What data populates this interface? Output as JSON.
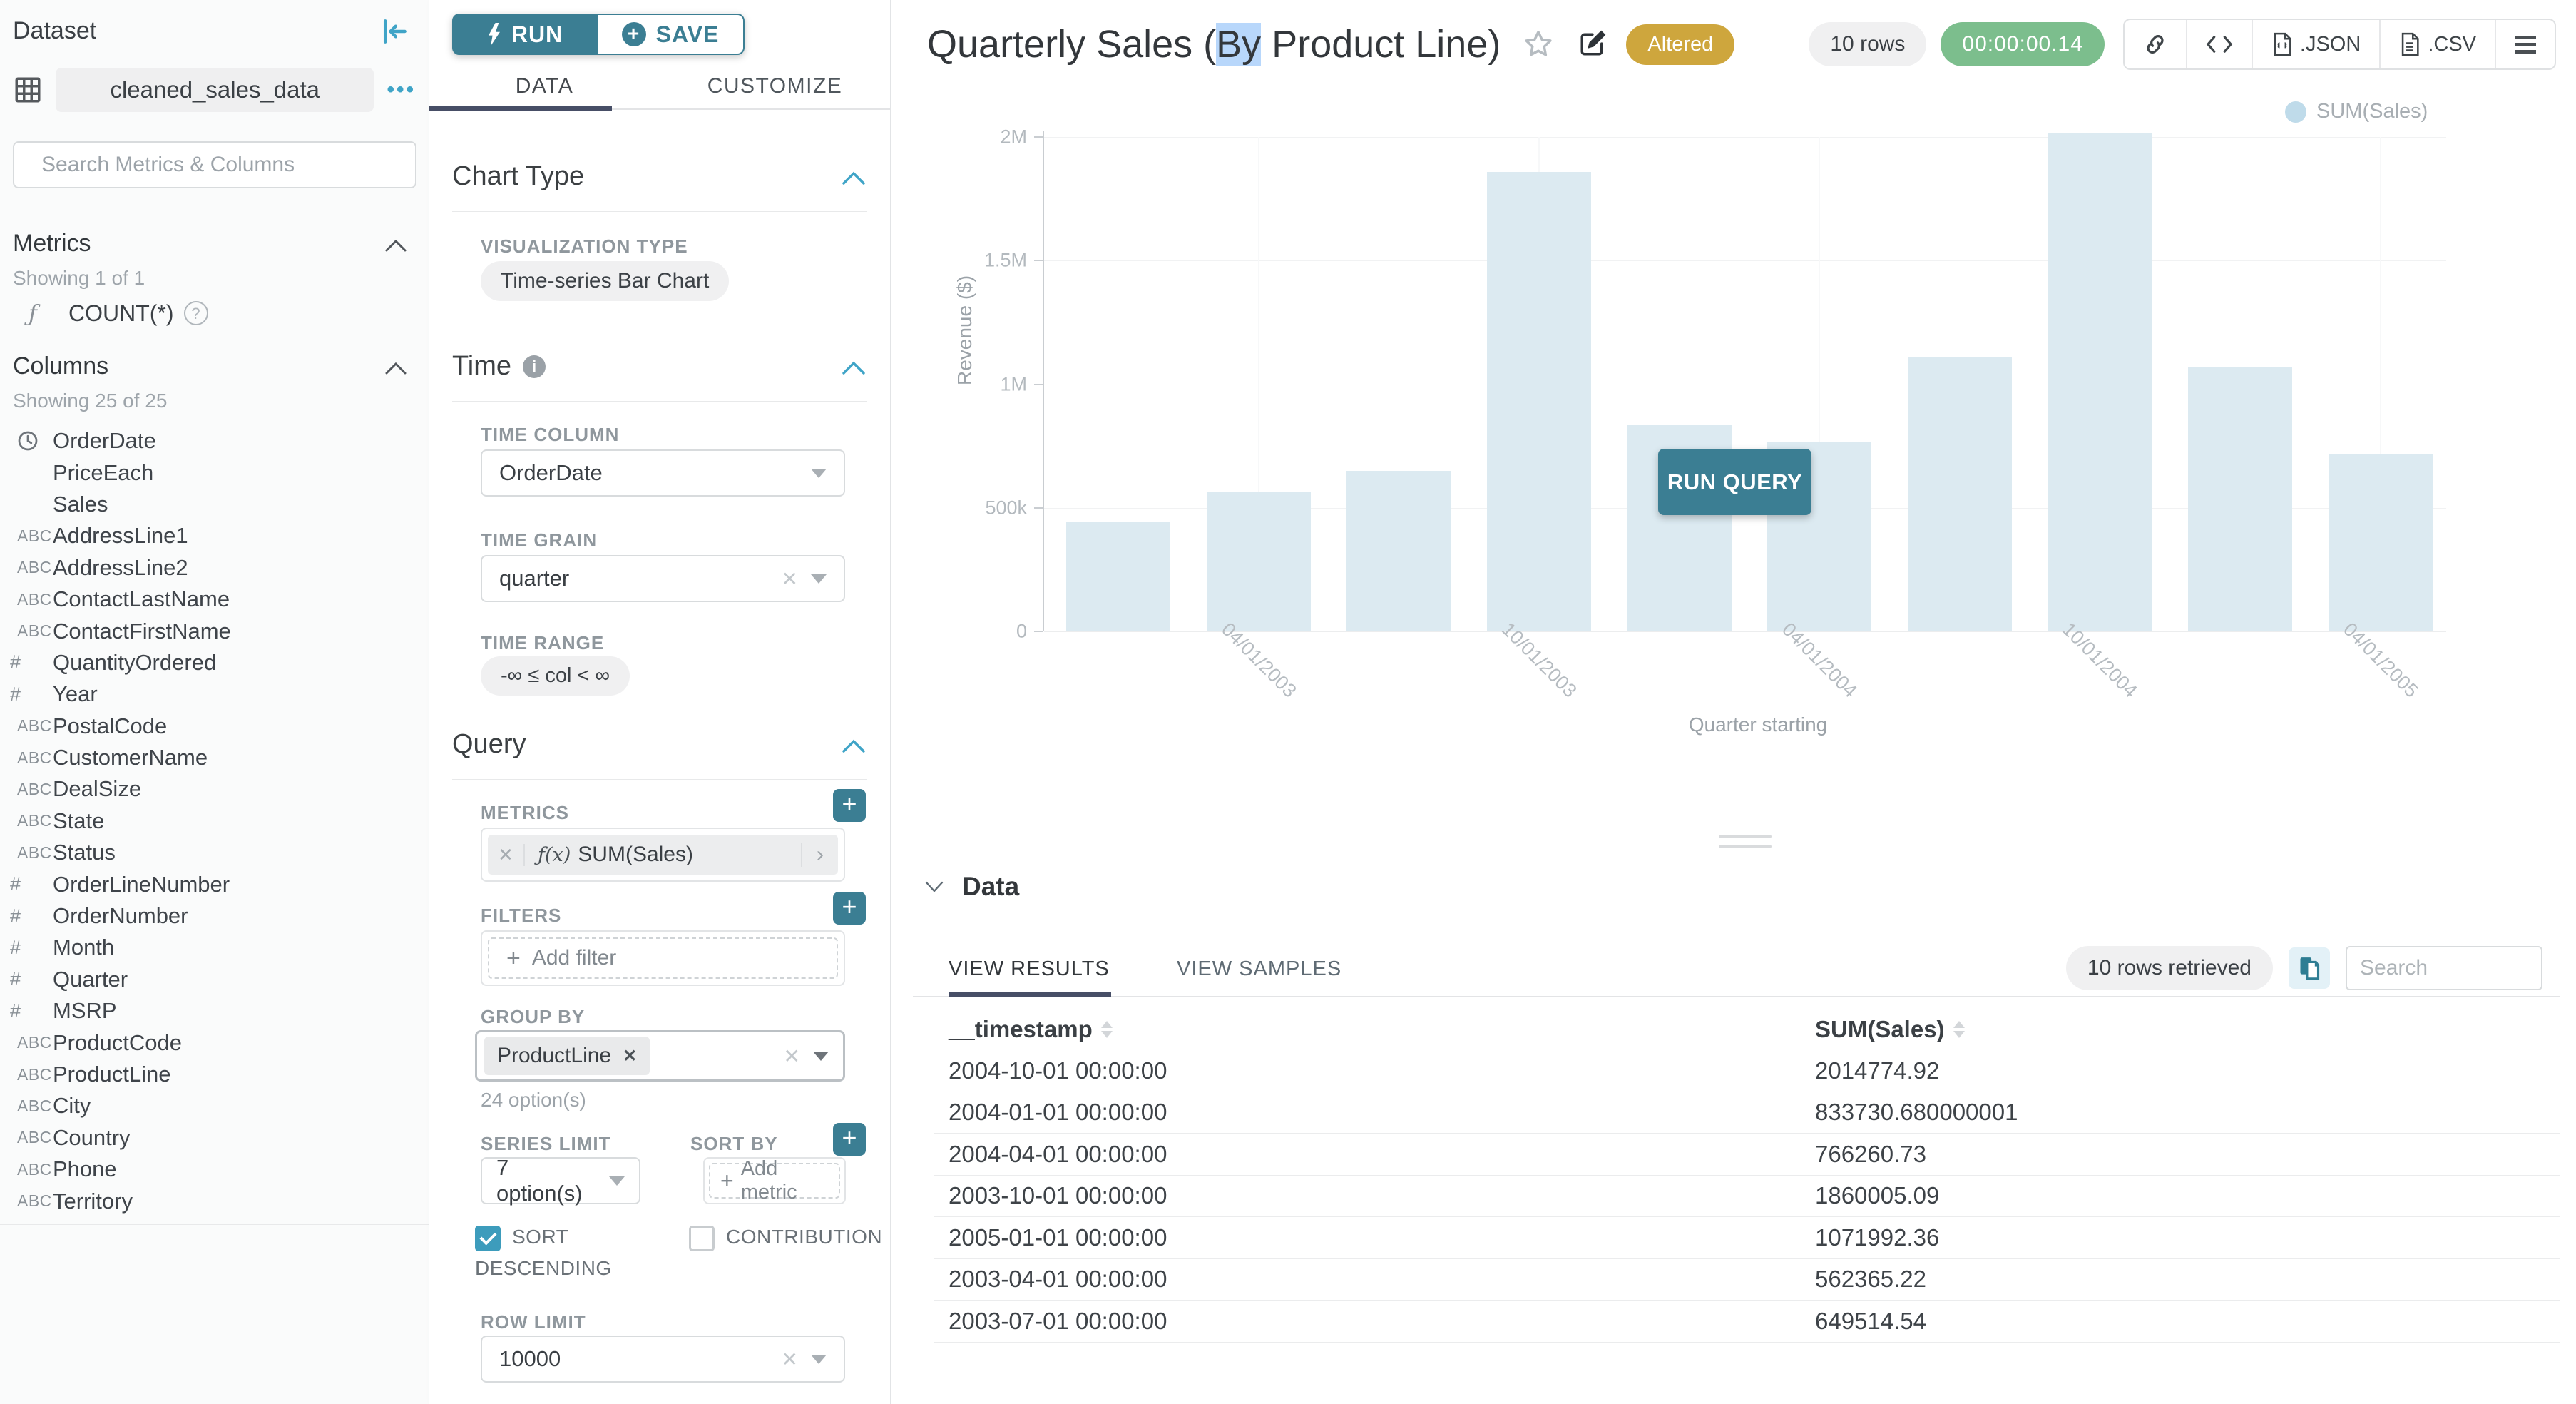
{
  "colors": {
    "primary_teal": "#3B7E93",
    "accent_blue": "#3FA4C7",
    "checkbox_checked": "#3D9CBC",
    "tab_underline": "#474E66",
    "altered_gold": "#CEA63D",
    "timer_green": "#7CBE8D",
    "bar_fill": "#DCEAF1",
    "legend_dot": "#BFDBEA",
    "pill_gray": "#F0F0F1",
    "selection_highlight": "#B8D7FB"
  },
  "sidebar": {
    "title": "Dataset",
    "dataset_name": "cleaned_sales_data",
    "menu_ellipsis": "•••",
    "search_placeholder": "Search Metrics & Columns",
    "metrics": {
      "title": "Metrics",
      "showing": "Showing 1 of 1",
      "items": [
        {
          "fn": "ƒ",
          "label": "COUNT(*)"
        }
      ]
    },
    "columns": {
      "title": "Columns",
      "showing": "Showing 25 of 25",
      "items": [
        {
          "type": "clock",
          "name": "OrderDate"
        },
        {
          "type": "none",
          "name": "PriceEach"
        },
        {
          "type": "none",
          "name": "Sales"
        },
        {
          "type": "abc",
          "name": "AddressLine1"
        },
        {
          "type": "abc",
          "name": "AddressLine2"
        },
        {
          "type": "abc",
          "name": "ContactLastName"
        },
        {
          "type": "abc",
          "name": "ContactFirstName"
        },
        {
          "type": "num",
          "name": "QuantityOrdered"
        },
        {
          "type": "num",
          "name": "Year"
        },
        {
          "type": "abc",
          "name": "PostalCode"
        },
        {
          "type": "abc",
          "name": "CustomerName"
        },
        {
          "type": "abc",
          "name": "DealSize"
        },
        {
          "type": "abc",
          "name": "State"
        },
        {
          "type": "abc",
          "name": "Status"
        },
        {
          "type": "num",
          "name": "OrderLineNumber"
        },
        {
          "type": "num",
          "name": "OrderNumber"
        },
        {
          "type": "num",
          "name": "Month"
        },
        {
          "type": "num",
          "name": "Quarter"
        },
        {
          "type": "num",
          "name": "MSRP"
        },
        {
          "type": "abc",
          "name": "ProductCode"
        },
        {
          "type": "abc",
          "name": "ProductLine"
        },
        {
          "type": "abc",
          "name": "City"
        },
        {
          "type": "abc",
          "name": "Country"
        },
        {
          "type": "abc",
          "name": "Phone"
        },
        {
          "type": "abc",
          "name": "Territory"
        }
      ]
    }
  },
  "controls": {
    "run_label": "RUN",
    "save_label": "SAVE",
    "tabs": {
      "data": "DATA",
      "customize": "CUSTOMIZE"
    },
    "chart_type": {
      "title": "Chart Type",
      "viz_label": "VISUALIZATION TYPE",
      "viz_value": "Time-series Bar Chart"
    },
    "time": {
      "title": "Time",
      "column_label": "TIME COLUMN",
      "column_value": "OrderDate",
      "grain_label": "TIME GRAIN",
      "grain_value": "quarter",
      "range_label": "TIME RANGE",
      "range_value": "-∞ ≤ col < ∞"
    },
    "query": {
      "title": "Query",
      "metrics_label": "METRICS",
      "metric_fn": "ƒ(x)",
      "metric_value": "SUM(Sales)",
      "filters_label": "FILTERS",
      "add_filter_label": "Add filter",
      "group_by_label": "GROUP BY",
      "group_by_value": "ProductLine",
      "options_hint": "24 option(s)",
      "series_limit_label": "SERIES LIMIT",
      "series_limit_value": "7 option(s)",
      "sort_by_label": "SORT BY",
      "add_metric_label": "Add metric",
      "sort_descending_label": "SORT DESCENDING",
      "contribution_label": "CONTRIBUTION",
      "row_limit_label": "ROW LIMIT",
      "row_limit_value": "10000"
    }
  },
  "header": {
    "title_prefix": "Quarterly Sales (",
    "title_highlight": "By",
    "title_suffix": " Product Line)",
    "altered_badge": "Altered",
    "rows_badge": "10 rows",
    "timer": "00:00:00.14",
    "export_json_label": ".JSON",
    "export_csv_label": ".CSV"
  },
  "chart": {
    "run_query_label": "RUN QUERY"
  },
  "chart_data": {
    "type": "bar",
    "title": "Quarterly Sales (By Product Line)",
    "categories": [
      "2003-01-01",
      "2003-04-01",
      "2003-07-01",
      "2003-10-01",
      "2004-01-01",
      "2004-04-01",
      "2004-07-01",
      "2004-10-01",
      "2005-01-01",
      "2005-04-01"
    ],
    "series": [
      {
        "name": "SUM(Sales)",
        "values": [
          445095,
          562365.22,
          649514.54,
          1860005.09,
          833730.68,
          766260.73,
          1109396,
          2014774.92,
          1071992.36,
          719494
        ]
      }
    ],
    "xlabel": "Quarter starting",
    "ylabel": "Revenue ($)",
    "ylim": [
      0,
      2000000
    ],
    "yticks": {
      "values": [
        0,
        500000,
        1000000,
        1500000,
        2000000
      ],
      "labels": [
        "0",
        "500k",
        "1M",
        "1.5M",
        "2M"
      ]
    },
    "x_tick_labels": [
      "04/01/2003",
      "10/01/2003",
      "04/01/2004",
      "10/01/2004",
      "04/01/2005"
    ],
    "legend": {
      "position": "top-right",
      "entries": [
        "SUM(Sales)"
      ]
    },
    "grid": true
  },
  "data_panel": {
    "title": "Data",
    "tabs": {
      "results": "VIEW RESULTS",
      "samples": "VIEW SAMPLES"
    },
    "rows_retrieved": "10 rows retrieved",
    "search_placeholder": "Search",
    "table": {
      "columns": [
        "__timestamp",
        "SUM(Sales)"
      ],
      "rows": [
        [
          "2004-10-01 00:00:00",
          "2014774.92"
        ],
        [
          "2004-01-01 00:00:00",
          "833730.680000001"
        ],
        [
          "2004-04-01 00:00:00",
          "766260.73"
        ],
        [
          "2003-10-01 00:00:00",
          "1860005.09"
        ],
        [
          "2005-01-01 00:00:00",
          "1071992.36"
        ],
        [
          "2003-04-01 00:00:00",
          "562365.22"
        ],
        [
          "2003-07-01 00:00:00",
          "649514.54"
        ]
      ]
    }
  }
}
